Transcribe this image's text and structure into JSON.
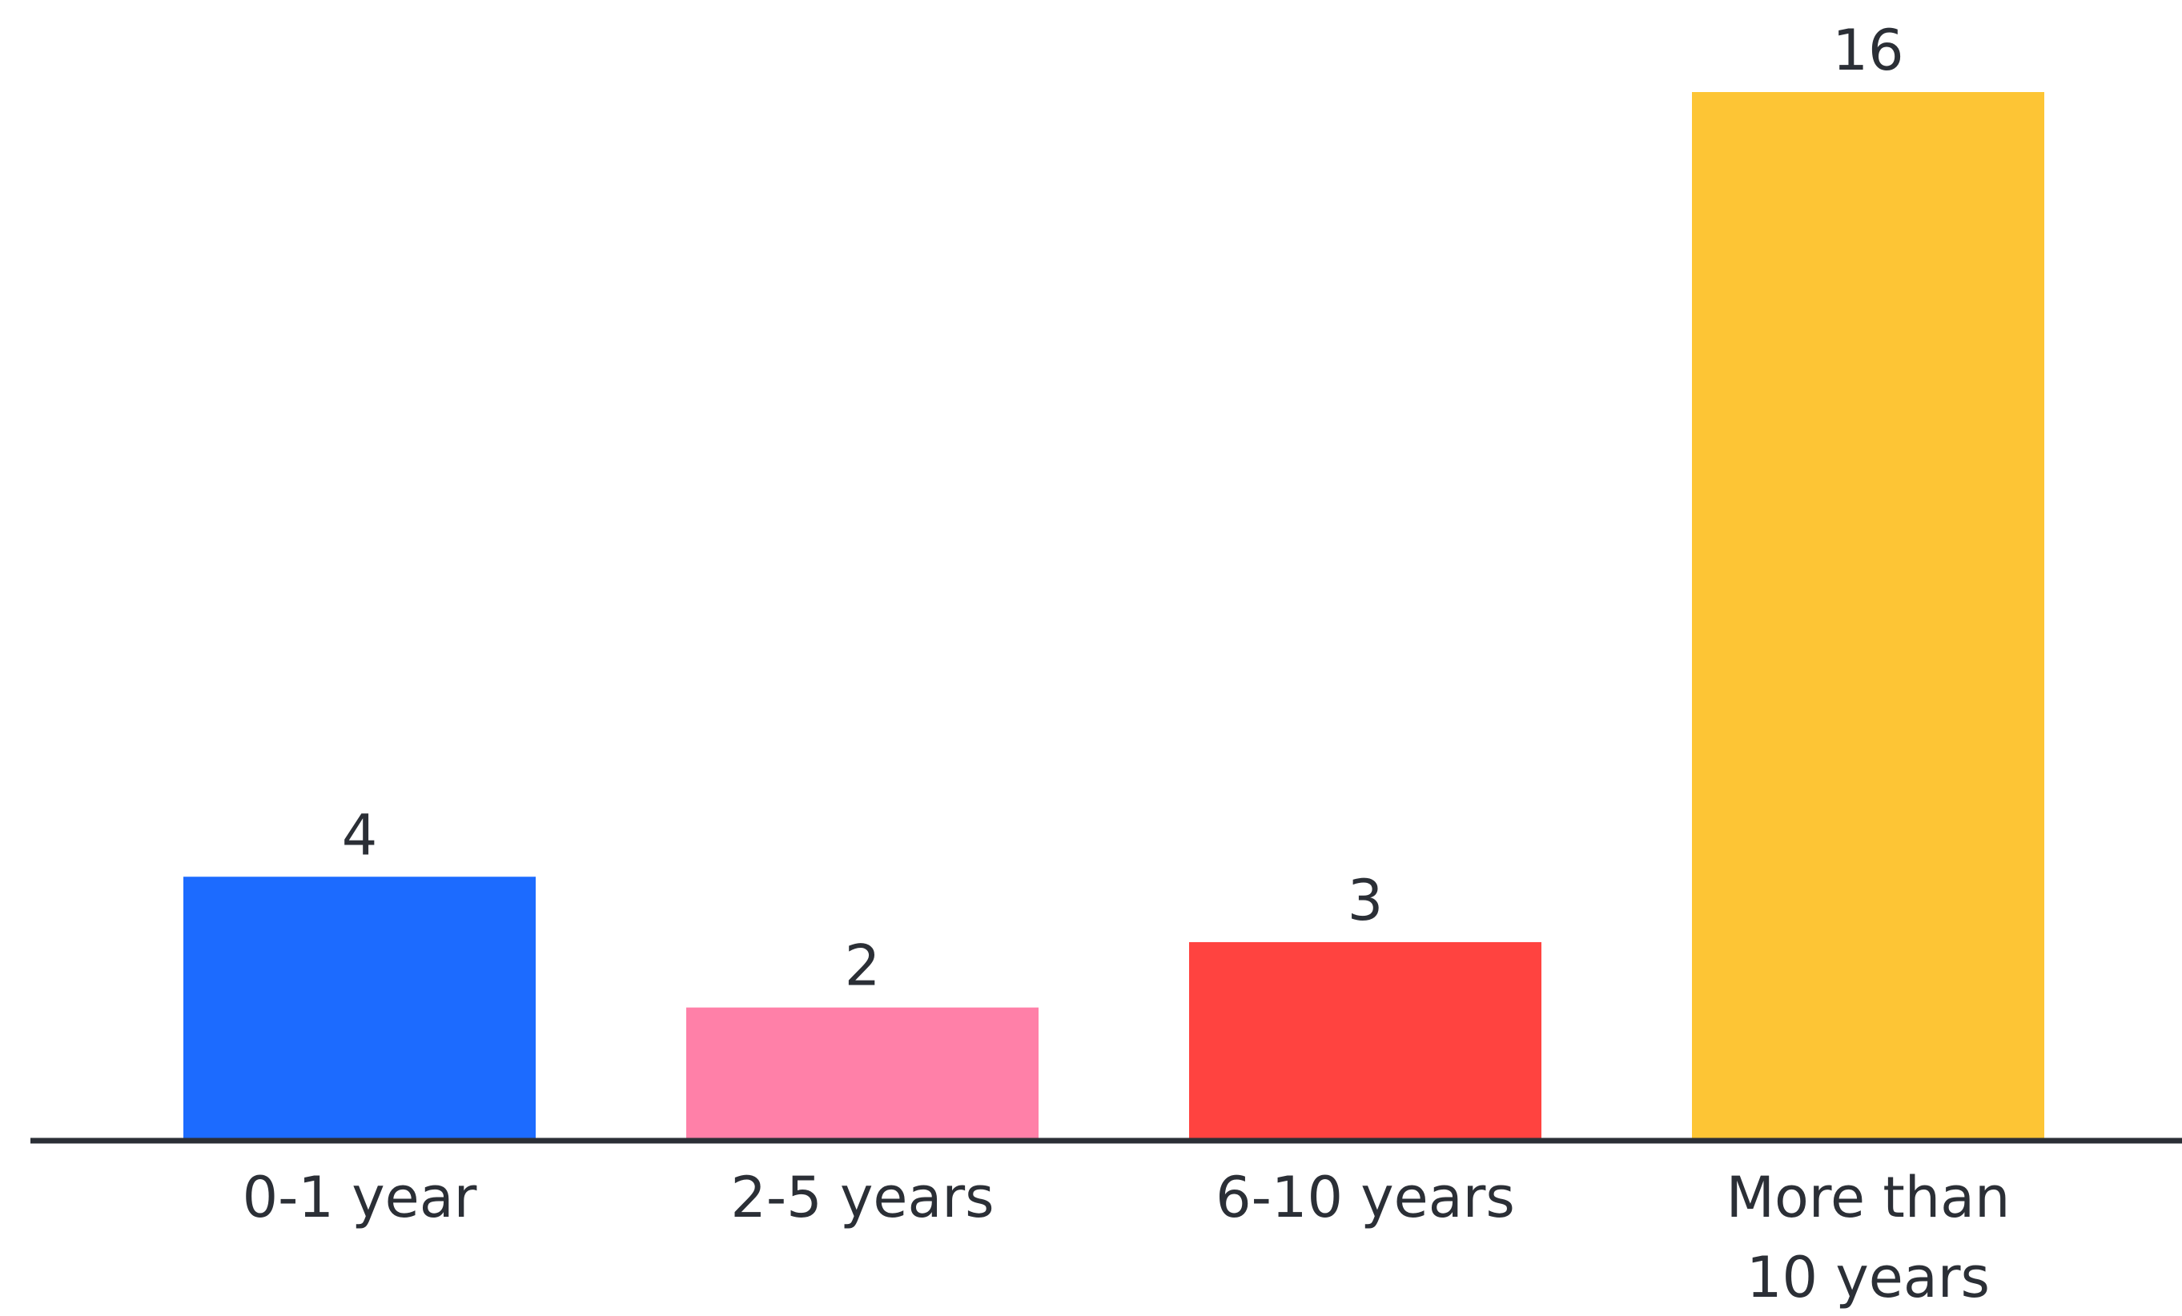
{
  "chart_data": {
    "type": "bar",
    "categories": [
      "0-1 year",
      "2-5 years",
      "6-10 years",
      "More than 10 years"
    ],
    "category_label_lines": [
      [
        "0-1 year"
      ],
      [
        "2-5 years"
      ],
      [
        "6-10 years"
      ],
      [
        "More than",
        "10 years"
      ]
    ],
    "values": [
      4,
      2,
      3,
      16
    ],
    "data_labels": [
      "4",
      "2",
      "3",
      "16"
    ],
    "colors": [
      "#1c6bff",
      "#ff80a8",
      "#ff4340",
      "#fdc535"
    ],
    "axis_color": "#2b2f36",
    "text_color": "#2b2f36",
    "title": "",
    "xlabel": "",
    "ylabel": "",
    "ylim": [
      0,
      16
    ],
    "grid": false,
    "legend": "none"
  }
}
